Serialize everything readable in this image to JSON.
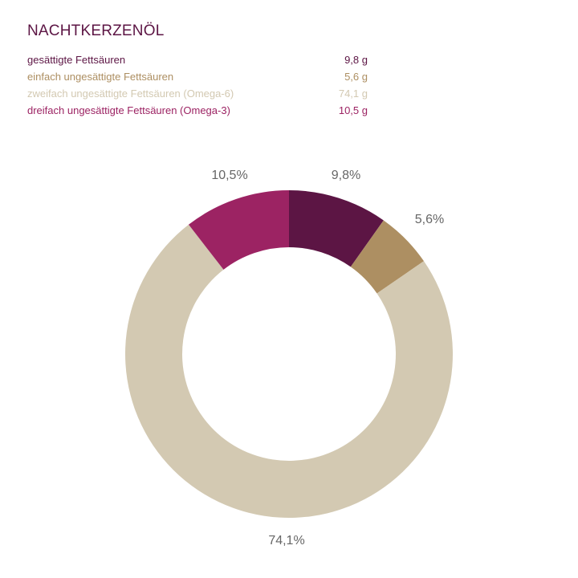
{
  "title": "NACHTKERZENÖL",
  "legend": [
    {
      "label": "gesättigte Fettsäuren",
      "value": "9,8 g",
      "color": "#5c1544"
    },
    {
      "label": "einfach ungesättigte Fettsäuren",
      "value": "5,6 g",
      "color": "#ad8f62"
    },
    {
      "label": "zweifach ungesättigte Fettsäuren (Omega-6)",
      "value": "74,1 g",
      "color": "#d3c9b2"
    },
    {
      "label": "dreifach ungesättigte Fettsäuren (Omega-3)",
      "value": "10,5 g",
      "color": "#9c2363"
    }
  ],
  "labels": {
    "l0": "9,8%",
    "l1": "5,6%",
    "l2": "74,1%",
    "l3": "10,5%"
  },
  "chart_data": {
    "type": "pie",
    "subtype": "donut",
    "title": "NACHTKERZENÖL",
    "categories": [
      "gesättigte Fettsäuren",
      "einfach ungesättigte Fettsäuren",
      "zweifach ungesättigte Fettsäuren (Omega-6)",
      "dreifach ungesättigte Fettsäuren (Omega-3)"
    ],
    "values": [
      9.8,
      5.6,
      74.1,
      10.5
    ],
    "unit": "g",
    "percent_labels": [
      "9,8%",
      "5,6%",
      "74,1%",
      "10,5%"
    ],
    "colors": [
      "#5c1544",
      "#ad8f62",
      "#d3c9b2",
      "#9c2363"
    ],
    "start_angle": "12 o'clock, clockwise",
    "legend_position": "top-left"
  }
}
